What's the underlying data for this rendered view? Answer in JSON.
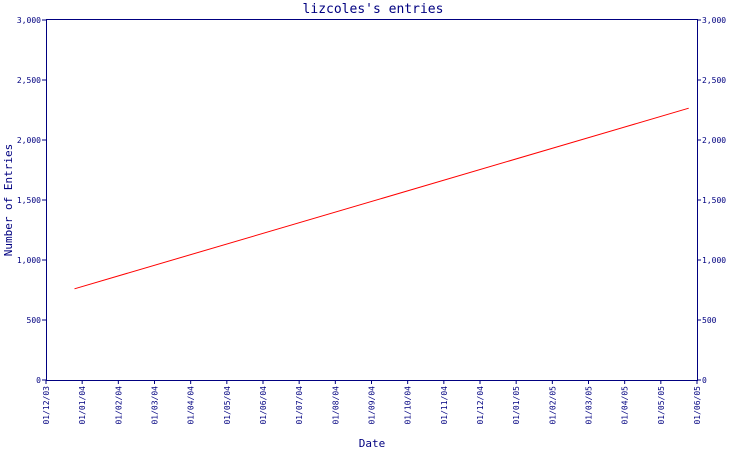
{
  "chart_data": {
    "type": "line",
    "title": "lizcoles's entries",
    "xlabel": "Date",
    "ylabel": "Number of Entries",
    "x_tick_labels": [
      "01/12/03",
      "01/01/04",
      "01/02/04",
      "01/03/04",
      "01/04/04",
      "01/05/04",
      "01/06/04",
      "01/07/04",
      "01/08/04",
      "01/09/04",
      "01/10/04",
      "01/11/04",
      "01/12/04",
      "01/01/05",
      "01/02/05",
      "01/03/05",
      "01/04/05",
      "01/05/05",
      "01/06/05"
    ],
    "y_tick_labels": [
      "0",
      "500",
      "1,000",
      "1,500",
      "2,000",
      "2,500",
      "3,000"
    ],
    "ylim": [
      0,
      3000
    ],
    "xlim": [
      "2003-12-01",
      "2005-06-01"
    ],
    "grid": false,
    "line_color": "#ff0000",
    "axis_color": "#000080",
    "series": [
      {
        "x": [
          "2003-12-25",
          "2005-05-25"
        ],
        "values": [
          760,
          2265
        ]
      }
    ]
  }
}
